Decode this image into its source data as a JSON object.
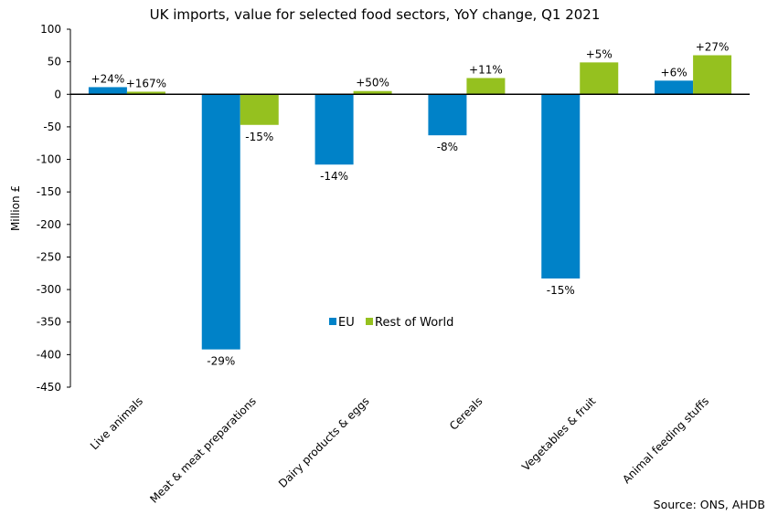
{
  "chart_data": {
    "type": "bar",
    "title": "UK imports, value for selected food sectors, YoY change, Q1 2021",
    "xlabel": "",
    "ylabel": "Million £",
    "ylim": [
      -450,
      100
    ],
    "yticks": [
      100,
      50,
      0,
      -50,
      -100,
      -150,
      -200,
      -250,
      -300,
      -350,
      -400,
      -450
    ],
    "grid": false,
    "legend_position": "center",
    "categories": [
      "Live animals",
      "Meat & meat preparations",
      "Dairy products & eggs",
      "Cereals",
      "Vegetables & fruit",
      "Animal feeding stuffs"
    ],
    "series": [
      {
        "name": "EU",
        "color": "#0082C8",
        "values": [
          11,
          -392,
          -108,
          -63,
          -283,
          21
        ],
        "labels": [
          "+24%",
          "-29%",
          "-14%",
          "-8%",
          "-15%",
          "+6%"
        ]
      },
      {
        "name": "Rest of World",
        "color": "#95C11F",
        "values": [
          4,
          -47,
          5,
          25,
          49,
          60
        ],
        "labels": [
          "+167%",
          "-15%",
          "+50%",
          "+11%",
          "+5%",
          "+27%"
        ]
      }
    ],
    "source": "Source: ONS, AHDB"
  }
}
